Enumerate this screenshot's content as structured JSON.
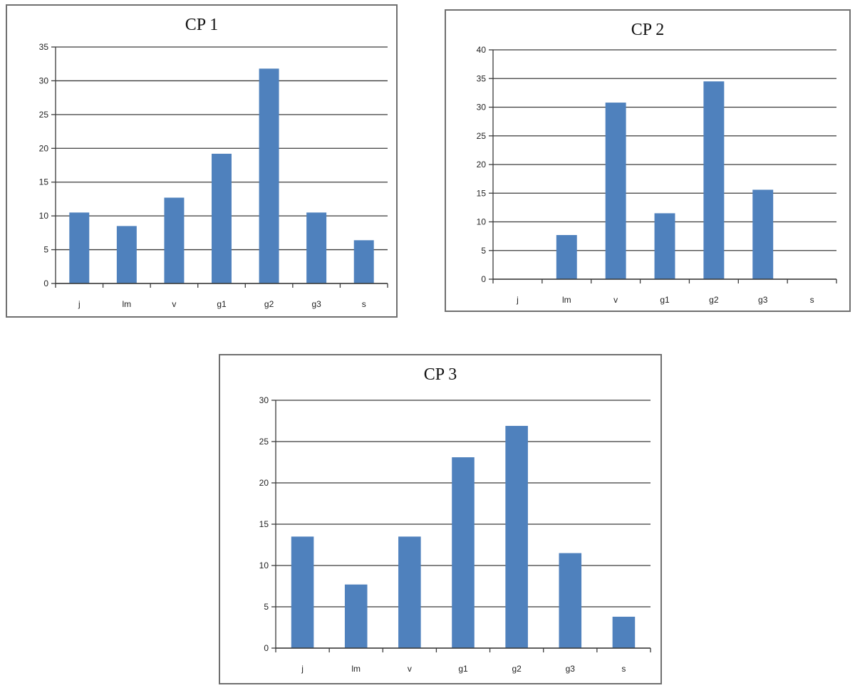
{
  "colors": {
    "bar": "#4f81bd",
    "grid": "#3a3a3a",
    "frame": "#6f6f6f"
  },
  "chart_data": [
    {
      "id": "cp1",
      "type": "bar",
      "title": "CP 1",
      "categories": [
        "j",
        "lm",
        "v",
        "g1",
        "g2",
        "g3",
        "s"
      ],
      "values": [
        10.5,
        8.5,
        12.7,
        19.2,
        31.8,
        10.5,
        6.4
      ],
      "ylim": [
        0,
        35
      ],
      "yticks": [
        0,
        5,
        10,
        15,
        20,
        25,
        30,
        35
      ],
      "grid": true,
      "legend": "none"
    },
    {
      "id": "cp2",
      "type": "bar",
      "title": "CP 2",
      "categories": [
        "j",
        "lm",
        "v",
        "g1",
        "g2",
        "g3",
        "s"
      ],
      "values": [
        0,
        7.7,
        30.8,
        11.5,
        34.5,
        15.6,
        0
      ],
      "ylim": [
        0,
        40
      ],
      "yticks": [
        0,
        5,
        10,
        15,
        20,
        25,
        30,
        35,
        40
      ],
      "grid": true,
      "legend": "none"
    },
    {
      "id": "cp3",
      "type": "bar",
      "title": "CP 3",
      "categories": [
        "j",
        "lm",
        "v",
        "g1",
        "g2",
        "g3",
        "s"
      ],
      "values": [
        13.5,
        7.7,
        13.5,
        23.1,
        26.9,
        11.5,
        3.8
      ],
      "ylim": [
        0,
        30
      ],
      "yticks": [
        0,
        5,
        10,
        15,
        20,
        25,
        30
      ],
      "grid": true,
      "legend": "none"
    }
  ]
}
